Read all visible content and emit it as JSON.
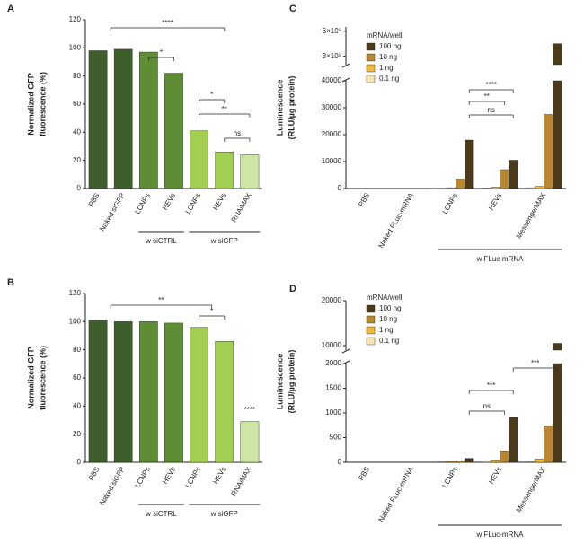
{
  "chart_data": [
    {
      "panel": "A",
      "type": "bar",
      "y_label": [
        "Normalized GFP",
        "fluorescence (%)"
      ],
      "categories": [
        "PBS",
        "Naked siGFP",
        "LCNPs",
        "HEVs",
        "LCNPs",
        "HEVs",
        "RNAiMAX"
      ],
      "values": [
        98,
        99,
        97,
        82,
        41,
        26,
        24
      ],
      "colors": [
        "#3e5f2c",
        "#3e5f2c",
        "#5f8d36",
        "#5f8d36",
        "#a2cf52",
        "#a2cf52",
        "#cde6a6"
      ],
      "ylim": [
        0,
        120
      ],
      "yticks": [
        0,
        20,
        40,
        60,
        80,
        100,
        120
      ],
      "groups": [
        "w siCTRL",
        "w siGFP"
      ],
      "annotations": [
        "****",
        "*",
        "*",
        "**",
        "ns"
      ]
    },
    {
      "panel": "B",
      "type": "bar",
      "y_label": [
        "Normalized GFP",
        "fluorescence (%)"
      ],
      "categories": [
        "PBS",
        "Naked siGFP",
        "LCNPs",
        "HEVs",
        "LCNPs",
        "HEVs",
        "RNAiMAX"
      ],
      "values": [
        101,
        100,
        100,
        99,
        96,
        86,
        29
      ],
      "colors": [
        "#3e5f2c",
        "#3e5f2c",
        "#5f8d36",
        "#5f8d36",
        "#a2cf52",
        "#a2cf52",
        "#cde6a6"
      ],
      "ylim": [
        0,
        120
      ],
      "yticks": [
        0,
        20,
        40,
        60,
        80,
        100,
        120
      ],
      "groups": [
        "w siCTRL",
        "w siGFP"
      ],
      "annotations": [
        "**",
        "*",
        "****"
      ]
    },
    {
      "panel": "C",
      "type": "grouped_bar",
      "y_label": [
        "Luminescence",
        "(RLU/µg protein)"
      ],
      "legend_title": "mRNA/well",
      "categories": [
        "PBS",
        "Naked FLuc-mRNA",
        "LCNPs",
        "HEVs",
        "MessengerMAX"
      ],
      "series": [
        {
          "name": "100 ng",
          "color": "#4b3b1b",
          "values": [
            0,
            0,
            18000,
            10500,
            450000
          ]
        },
        {
          "name": "10 ng",
          "color": "#b8872f",
          "values": [
            0,
            0,
            3500,
            7000,
            27500
          ]
        },
        {
          "name": "1 ng",
          "color": "#f0b83c",
          "values": [
            0,
            0,
            300,
            500,
            800
          ]
        },
        {
          "name": "0.1 ng",
          "color": "#f8e4b3",
          "values": [
            0,
            0,
            100,
            200,
            300
          ]
        }
      ],
      "ylim": [
        0,
        40000
      ],
      "yticks": [
        0,
        10000,
        20000,
        30000,
        40000
      ],
      "break": {
        "ylim": [
          200000,
          650000
        ],
        "yticks": [
          {
            "value": 300000,
            "label": "3×10⁵"
          },
          {
            "value": 600000,
            "label": "6×10⁵"
          }
        ]
      },
      "groups": [
        "w FLuc-mRNA"
      ],
      "annotations": [
        "****",
        "**",
        "ns"
      ]
    },
    {
      "panel": "D",
      "type": "grouped_bar",
      "y_label": [
        "Luminescence",
        "(RLU/µg protein)"
      ],
      "legend_title": "mRNA/well",
      "categories": [
        "PBS",
        "Naked FLuc-mRNA",
        "LCNPs",
        "HEVs",
        "MessengerMAX"
      ],
      "series": [
        {
          "name": "100 ng",
          "color": "#4b3b1b",
          "values": [
            0,
            0,
            80,
            920,
            10500
          ]
        },
        {
          "name": "10 ng",
          "color": "#b8872f",
          "values": [
            0,
            0,
            30,
            230,
            740
          ]
        },
        {
          "name": "1 ng",
          "color": "#f0b83c",
          "values": [
            0,
            0,
            15,
            50,
            70
          ]
        },
        {
          "name": "0.1 ng",
          "color": "#f8e4b3",
          "values": [
            0,
            0,
            10,
            20,
            10
          ]
        }
      ],
      "ylim": [
        0,
        2000
      ],
      "yticks": [
        0,
        500,
        1000,
        1500,
        2000
      ],
      "break": {
        "ylim": [
          9000,
          20000
        ],
        "yticks": [
          10000,
          20000
        ]
      },
      "groups": [
        "w FLuc-mRNA"
      ],
      "annotations": [
        "***",
        "***",
        "ns"
      ]
    }
  ]
}
